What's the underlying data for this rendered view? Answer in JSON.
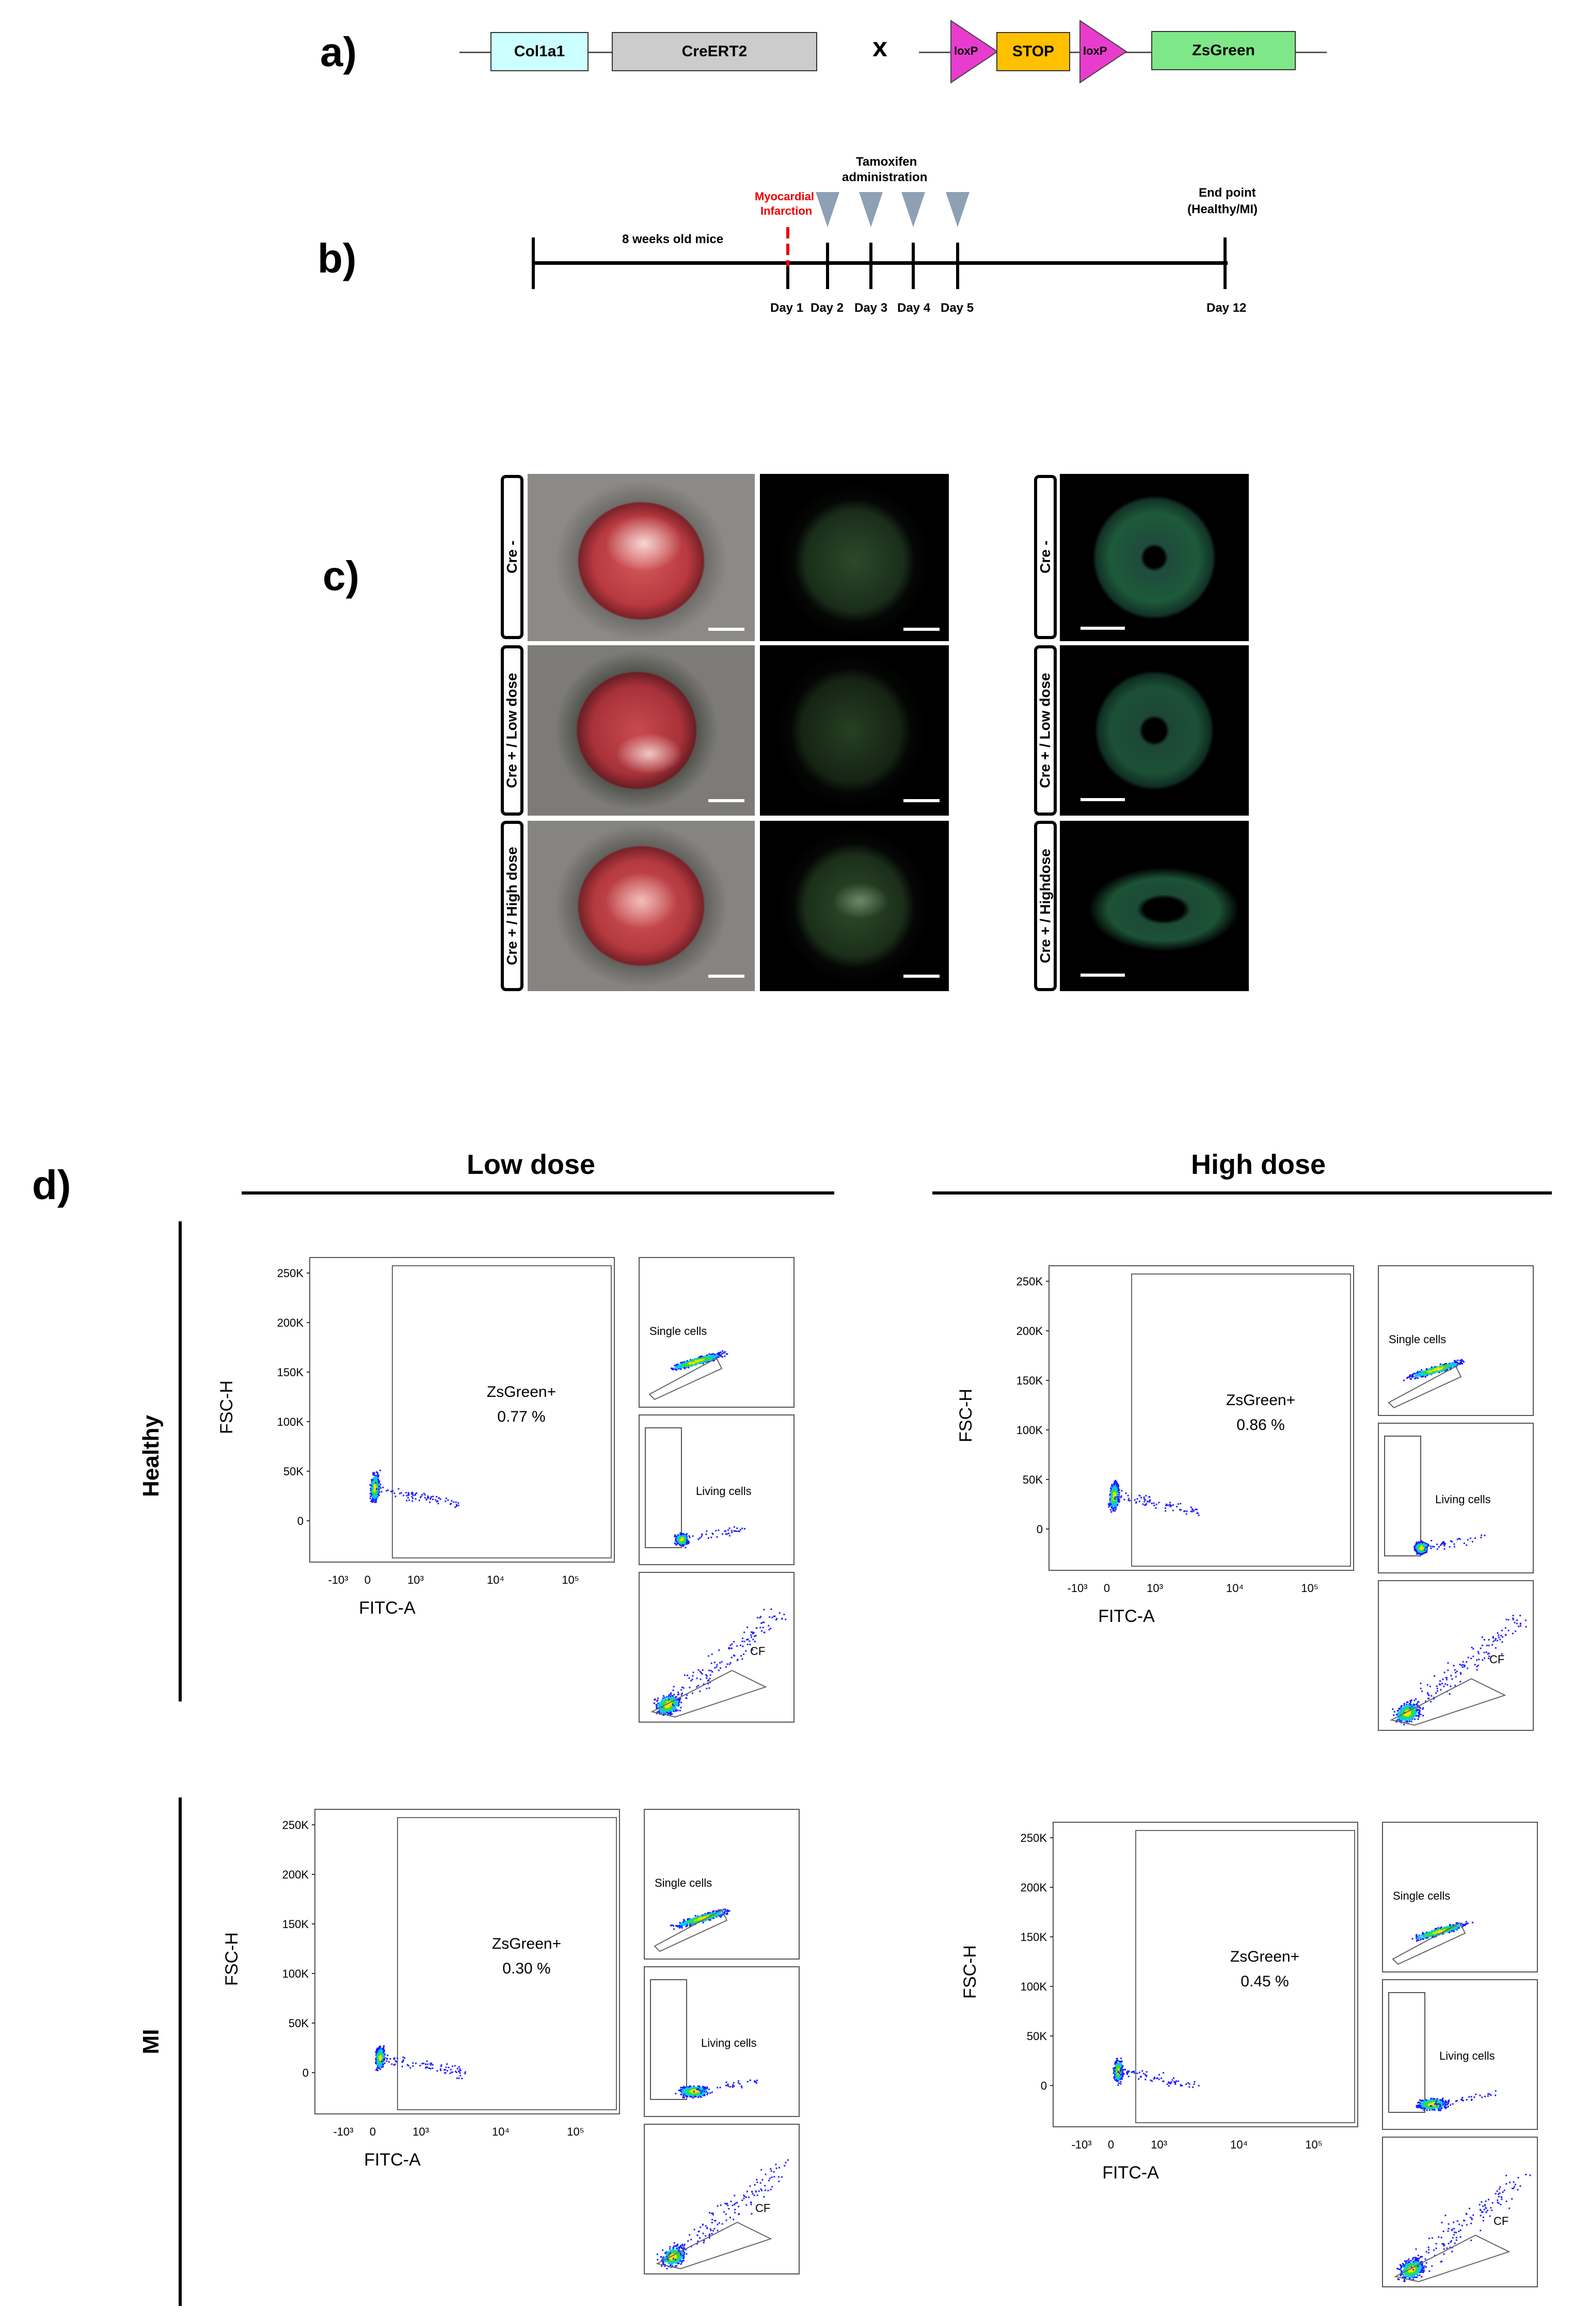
{
  "panel_a": {
    "label": "a)",
    "genes": [
      "Col1a1",
      "CreERT2"
    ],
    "cross": "x",
    "reporter": [
      "loxP",
      "STOP",
      "loxP",
      "ZsGreen"
    ],
    "colors": {
      "col1a1": "#ccffff",
      "creert2": "#cccccc",
      "loxp": "#e83ccf",
      "stop": "#ffc000",
      "zsgreen": "#7ee787"
    }
  },
  "panel_b": {
    "label": "b)",
    "timeline_label": "8 weeks old mice",
    "mi_label_1": "Myocardial",
    "mi_label_2": "Infarction",
    "tamoxifen_1": "Tamoxifen",
    "tamoxifen_2": "administration",
    "end_1": "End point",
    "end_2": "(Healthy/MI)",
    "days": [
      "Day 1",
      "Day 2",
      "Day 3",
      "Day 4",
      "Day 5",
      "Day 12"
    ]
  },
  "panel_c": {
    "label": "c)",
    "rows": [
      "Cre -",
      "Cre + / Low dose",
      "Cre + / High dose"
    ],
    "rows_right": [
      "Cre -",
      "Cre + / Low dose",
      "Cre + / Highdose"
    ]
  },
  "panel_d": {
    "label": "d)",
    "columns": [
      "Low dose",
      "High dose"
    ],
    "rows": [
      "Healthy",
      "MI"
    ],
    "y_axis": "FSC-H",
    "x_axis": "FITC-A",
    "y_ticks": [
      "250K",
      "200K",
      "150K",
      "100K",
      "50K",
      "0"
    ],
    "x_ticks": [
      "-10³",
      "0",
      "10³",
      "10⁴",
      "10⁵"
    ],
    "gate_label": "ZsGreen+",
    "gate_values": [
      "0.77 %",
      "0.86 %",
      "0.30 %",
      "0.45 %"
    ],
    "side_labels": [
      "Single cells",
      "Living cells",
      "CF"
    ]
  }
}
